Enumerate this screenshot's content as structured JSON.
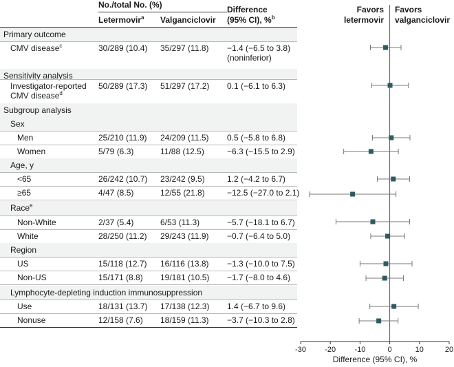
{
  "header": {
    "group_title": "No./total No. (%)",
    "col_letermovir": "Letermovir",
    "col_letermovir_sup": "a",
    "col_valganciclovir": "Valganciclovir",
    "col_difference_line1": "Difference",
    "col_difference_line2": "(95% CI), %",
    "col_difference_sup": "b",
    "favors_left_line1": "Favors",
    "favors_left_line2": "letermovir",
    "favors_right_line1": "Favors",
    "favors_right_line2": "valganciclovir"
  },
  "rows": [
    {
      "kind": "section",
      "label": "Primary outcome"
    },
    {
      "kind": "data",
      "indent": 1,
      "label": "CMV disease",
      "sup": "c",
      "letermovir": "30/289 (10.4)",
      "valganciclovir": "35/297 (11.8)",
      "difference": "−1.4 (−6.5 to 3.8)",
      "difference_line2": "(noninferior)"
    },
    {
      "kind": "section",
      "label": "Sensitivity analysis"
    },
    {
      "kind": "data",
      "indent": 1,
      "label": "Investigator-reported",
      "label_line2": "CMV disease",
      "sup": "d",
      "letermovir": "50/289 (17.3)",
      "valganciclovir": "51/297 (17.2)",
      "difference": "0.1 (−6.1 to 6.3)"
    },
    {
      "kind": "section",
      "label": "Subgroup analysis"
    },
    {
      "kind": "subhead",
      "label": "Sex"
    },
    {
      "kind": "data",
      "indent": 2,
      "label": "Men",
      "letermovir": "25/210 (11.9)",
      "valganciclovir": "24/209 (11.5)",
      "difference": "0.5 (−5.8 to 6.8)"
    },
    {
      "kind": "data",
      "indent": 2,
      "label": "Women",
      "letermovir": "5/79 (6.3)",
      "valganciclovir": "11/88 (12.5)",
      "difference": "−6.3 (−15.5 to 2.9)"
    },
    {
      "kind": "subhead",
      "label": "Age, y"
    },
    {
      "kind": "data",
      "indent": 2,
      "label": "<65",
      "letermovir": "26/242 (10.7)",
      "valganciclovir": "23/242 (9.5)",
      "difference": "1.2 (−4.2 to 6.7)"
    },
    {
      "kind": "data",
      "indent": 2,
      "label": "≥65",
      "letermovir": "4/47 (8.5)",
      "valganciclovir": "12/55 (21.8)",
      "difference": "−12.5 (−27.0 to 2.1)"
    },
    {
      "kind": "subhead",
      "label": "Race",
      "sup": "e"
    },
    {
      "kind": "data",
      "indent": 2,
      "label": "Non-White",
      "letermovir": "2/37 (5.4)",
      "valganciclovir": "6/53 (11.3)",
      "difference": "−5.7 (−18.1 to 6.7)"
    },
    {
      "kind": "data",
      "indent": 2,
      "label": "White",
      "letermovir": "28/250 (11.2)",
      "valganciclovir": "29/243 (11.9)",
      "difference": "−0.7 (−6.4 to 5.0)"
    },
    {
      "kind": "subhead",
      "label": "Region"
    },
    {
      "kind": "data",
      "indent": 2,
      "label": "US",
      "letermovir": "15/118 (12.7)",
      "valganciclovir": "16/116 (13.8)",
      "difference": "−1.3 (−10.0 to 7.5)"
    },
    {
      "kind": "data",
      "indent": 2,
      "label": "Non-US",
      "letermovir": "15/171 (8.8)",
      "valganciclovir": "19/181 (10.5)",
      "difference": "−1.7 (−8.0 to 4.6)"
    },
    {
      "kind": "subhead",
      "label": "Lymphocyte-depleting induction immunosuppression"
    },
    {
      "kind": "data",
      "indent": 2,
      "label": "Use",
      "letermovir": "18/131 (13.7)",
      "valganciclovir": "17/138 (12.3)",
      "difference": "1.4 (−6.7 to 9.6)"
    },
    {
      "kind": "data",
      "indent": 2,
      "label": "Nonuse",
      "letermovir": "12/158 (7.6)",
      "valganciclovir": "18/159 (11.3)",
      "difference": "−3.7 (−10.3 to 2.8)"
    }
  ],
  "chart_data": {
    "type": "scatter",
    "subtype": "forest-plot",
    "xlabel": "Difference (95% CI), %",
    "xlim": [
      -30,
      20
    ],
    "xticks": [
      -30,
      -20,
      -10,
      0,
      10,
      20
    ],
    "reference_line": 0,
    "marker_color": "#2e5b62",
    "series": [
      {
        "points": [
          {
            "label": "CMV disease",
            "estimate": -1.4,
            "lower": -6.5,
            "upper": 3.8
          },
          {
            "label": "Investigator-reported CMV disease",
            "estimate": 0.1,
            "lower": -6.1,
            "upper": 6.3
          },
          {
            "label": "Men",
            "estimate": 0.5,
            "lower": -5.8,
            "upper": 6.8
          },
          {
            "label": "Women",
            "estimate": -6.3,
            "lower": -15.5,
            "upper": 2.9
          },
          {
            "label": "<65",
            "estimate": 1.2,
            "lower": -4.2,
            "upper": 6.7
          },
          {
            "label": "≥65",
            "estimate": -12.5,
            "lower": -27.0,
            "upper": 2.1
          },
          {
            "label": "Non-White",
            "estimate": -5.7,
            "lower": -18.1,
            "upper": 6.7
          },
          {
            "label": "White",
            "estimate": -0.7,
            "lower": -6.4,
            "upper": 5.0
          },
          {
            "label": "US",
            "estimate": -1.3,
            "lower": -10.0,
            "upper": 7.5
          },
          {
            "label": "Non-US",
            "estimate": -1.7,
            "lower": -8.0,
            "upper": 4.6
          },
          {
            "label": "Use",
            "estimate": 1.4,
            "lower": -6.7,
            "upper": 9.6
          },
          {
            "label": "Nonuse",
            "estimate": -3.7,
            "lower": -10.3,
            "upper": 2.8
          }
        ]
      }
    ]
  }
}
